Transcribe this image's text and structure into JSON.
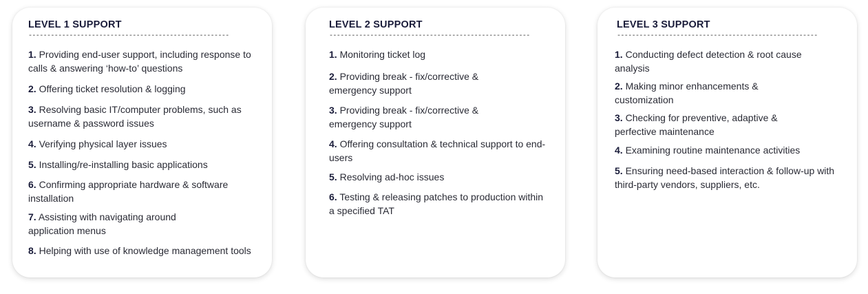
{
  "cards": [
    {
      "title": "LEVEL 1 SUPPORT",
      "divider": "------------------------------------------------------",
      "items": [
        {
          "num": "1.",
          "text": "Providing end-user support, including response to calls & answering ‘how-to’ questions"
        },
        {
          "num": "2.",
          "text": "Offering ticket resolution & logging"
        },
        {
          "num": "3.",
          "text": "Resolving basic IT/computer problems, such as username & password issues"
        },
        {
          "num": "4.",
          "text": "Verifying physical layer issues"
        },
        {
          "num": "5.",
          "text": "Installing/re-installing basic applications"
        },
        {
          "num": "6.",
          "text": "Confirming appropriate hardware & software installation"
        },
        {
          "num": "7.",
          "text": "Assisting with navigating around application menus"
        },
        {
          "num": "8.",
          "text": "Helping with use of knowledge management tools"
        }
      ]
    },
    {
      "title": "LEVEL 2 SUPPORT",
      "divider": "------------------------------------------------------",
      "items": [
        {
          "num": "1.",
          "text": "Monitoring ticket log"
        },
        {
          "num": "2.",
          "text": "Providing break -  fix/corrective & emergency support"
        },
        {
          "num": "3.",
          "text": "Providing break -  fix/corrective & emergency support"
        },
        {
          "num": "4.",
          "text": "Offering consultation & technical support to end-users"
        },
        {
          "num": "5.",
          "text": "Resolving ad-hoc issues"
        },
        {
          "num": "6.",
          "text": "Testing & releasing patches to production within a specified TAT"
        }
      ]
    },
    {
      "title": "LEVEL 3 SUPPORT",
      "divider": "------------------------------------------------------",
      "items": [
        {
          "num": "1.",
          "text": "Conducting defect detection & root cause analysis"
        },
        {
          "num": "2.",
          "text": "Making minor enhancements & customization"
        },
        {
          "num": "3.",
          "text": "Checking for preventive, adaptive & perfective maintenance"
        },
        {
          "num": "4.",
          "text": "Examining routine maintenance activities"
        },
        {
          "num": "5.",
          "text": "Ensuring need-based interaction & follow-up with third-party vendors, suppliers, etc."
        }
      ]
    }
  ]
}
